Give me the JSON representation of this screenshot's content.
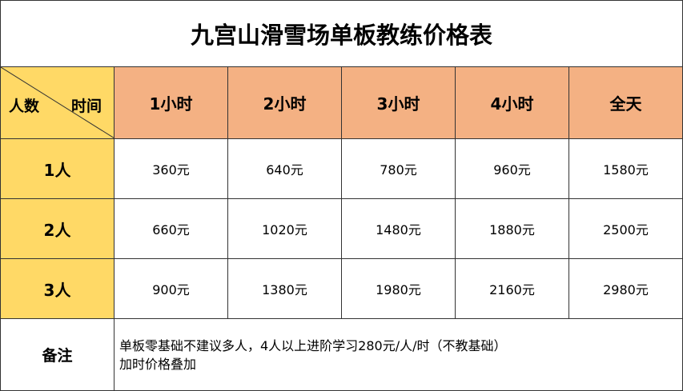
{
  "title": "九宫山滑雪场单板教练价格表",
  "table": {
    "corner_row": "人数",
    "corner_col": "时间",
    "columns": [
      "1小时",
      "2小时",
      "3小时",
      "4小时",
      "全天"
    ],
    "rows": [
      {
        "label": "1人",
        "cells": [
          "360元",
          "640元",
          "780元",
          "960元",
          "1580元"
        ]
      },
      {
        "label": "2人",
        "cells": [
          "660元",
          "1020元",
          "1480元",
          "1880元",
          "2500元"
        ]
      },
      {
        "label": "3人",
        "cells": [
          "900元",
          "1380元",
          "1980元",
          "2160元",
          "2980元"
        ]
      }
    ],
    "note_label": "备注",
    "notes": [
      "单板零基础不建议多人，4人以上进阶学习280元/人/时（不教基础）",
      "加时价格叠加"
    ]
  }
}
